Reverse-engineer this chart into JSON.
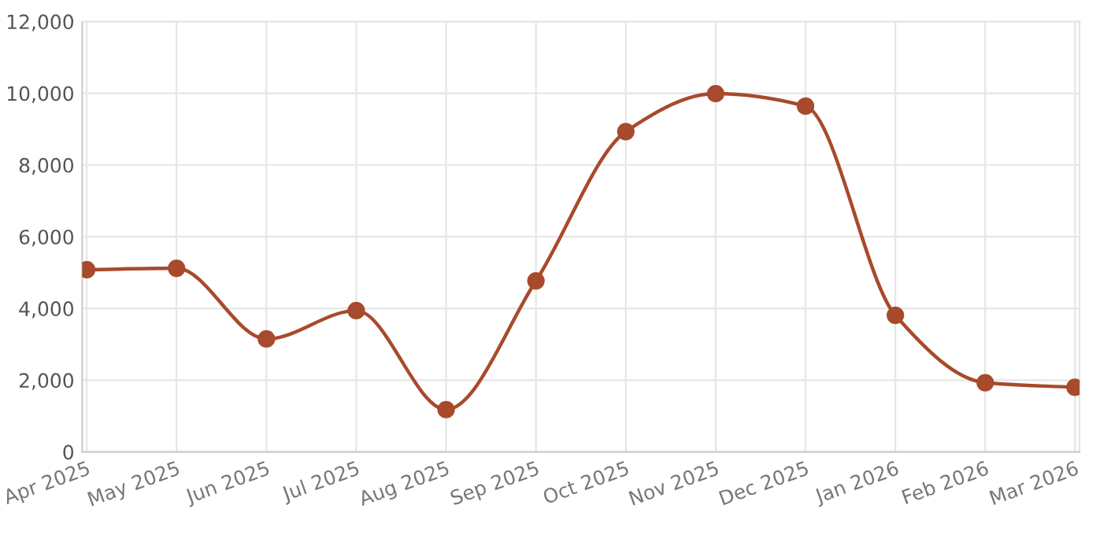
{
  "chart_data": {
    "type": "line",
    "categories": [
      "Apr 2025",
      "May 2025",
      "Jun 2025",
      "Jul 2025",
      "Aug 2025",
      "Sep 2025",
      "Oct 2025",
      "Nov 2025",
      "Dec 2025",
      "Jan 2026",
      "Feb 2026",
      "Mar 2026"
    ],
    "series": [
      {
        "color": "#a84a2c",
        "values": [
          5080,
          5120,
          3150,
          3940,
          1180,
          4770,
          8930,
          9990,
          9640,
          3810,
          1930,
          1800
        ]
      }
    ],
    "ylim": [
      0,
      12000
    ],
    "yticks": [
      {
        "value": 0,
        "label": "0"
      },
      {
        "value": 2000,
        "label": "2,000"
      },
      {
        "value": 4000,
        "label": "4,000"
      },
      {
        "value": 6000,
        "label": "6,000"
      },
      {
        "value": 8000,
        "label": "8,000"
      },
      {
        "value": 10000,
        "label": "10,000"
      },
      {
        "value": 12000,
        "label": "12,000"
      }
    ],
    "grid": true,
    "marker": "circle",
    "line_style": "solid"
  }
}
